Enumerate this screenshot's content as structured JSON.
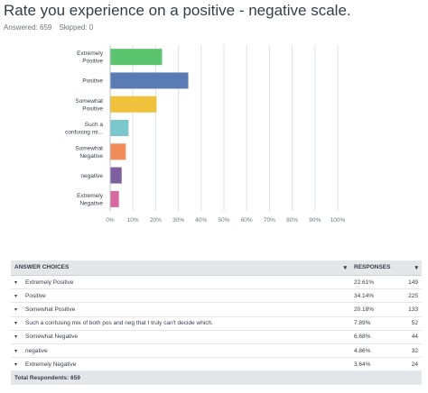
{
  "question": {
    "title": "Rate you experience on a positive - negative scale.",
    "answered": "Answered: 659",
    "skipped": "Skipped: 0"
  },
  "colors": {
    "bars": [
      "#5cc46e",
      "#5b7bb5",
      "#f0c23b",
      "#7cc7cc",
      "#ef8c5a",
      "#7d5f9f",
      "#d669a0"
    ],
    "grid": "#dde2e6"
  },
  "chart_data": {
    "type": "bar",
    "orientation": "horizontal",
    "categories": [
      [
        "Extremely",
        "Positive"
      ],
      [
        "Positive"
      ],
      [
        "Somewhat",
        "Positive"
      ],
      [
        "Such a",
        "confusing mi..."
      ],
      [
        "Somewhat",
        "Negative"
      ],
      [
        "negative"
      ],
      [
        "Extremely",
        "Negative"
      ]
    ],
    "values": [
      22.61,
      34.14,
      20.18,
      7.89,
      6.68,
      4.86,
      3.64
    ],
    "xlim": [
      0,
      100
    ],
    "xticks": [
      "0%",
      "10%",
      "20%",
      "30%",
      "40%",
      "50%",
      "60%",
      "70%",
      "80%",
      "90%",
      "100%"
    ],
    "grid": true,
    "legend": "none"
  },
  "table": {
    "headers": {
      "choices": "ANSWER CHOICES",
      "responses": "RESPONSES",
      "caret": "▾"
    },
    "rows": [
      {
        "label": "Extremely Positive",
        "pct": "22.61%",
        "count": "149"
      },
      {
        "label": "Positive",
        "pct": "34.14%",
        "count": "225"
      },
      {
        "label": "Somewhat Positive",
        "pct": "20.18%",
        "count": "133"
      },
      {
        "label": "Such a confusing mix of both pos and neg that I truly can't decide which.",
        "pct": "7.89%",
        "count": "52"
      },
      {
        "label": "Somewhat Negative",
        "pct": "6.68%",
        "count": "44"
      },
      {
        "label": "negative",
        "pct": "4.86%",
        "count": "32"
      },
      {
        "label": "Extremely Negative",
        "pct": "3.64%",
        "count": "24"
      }
    ],
    "row_caret": "▾",
    "total": "Total Respondents: 659"
  }
}
